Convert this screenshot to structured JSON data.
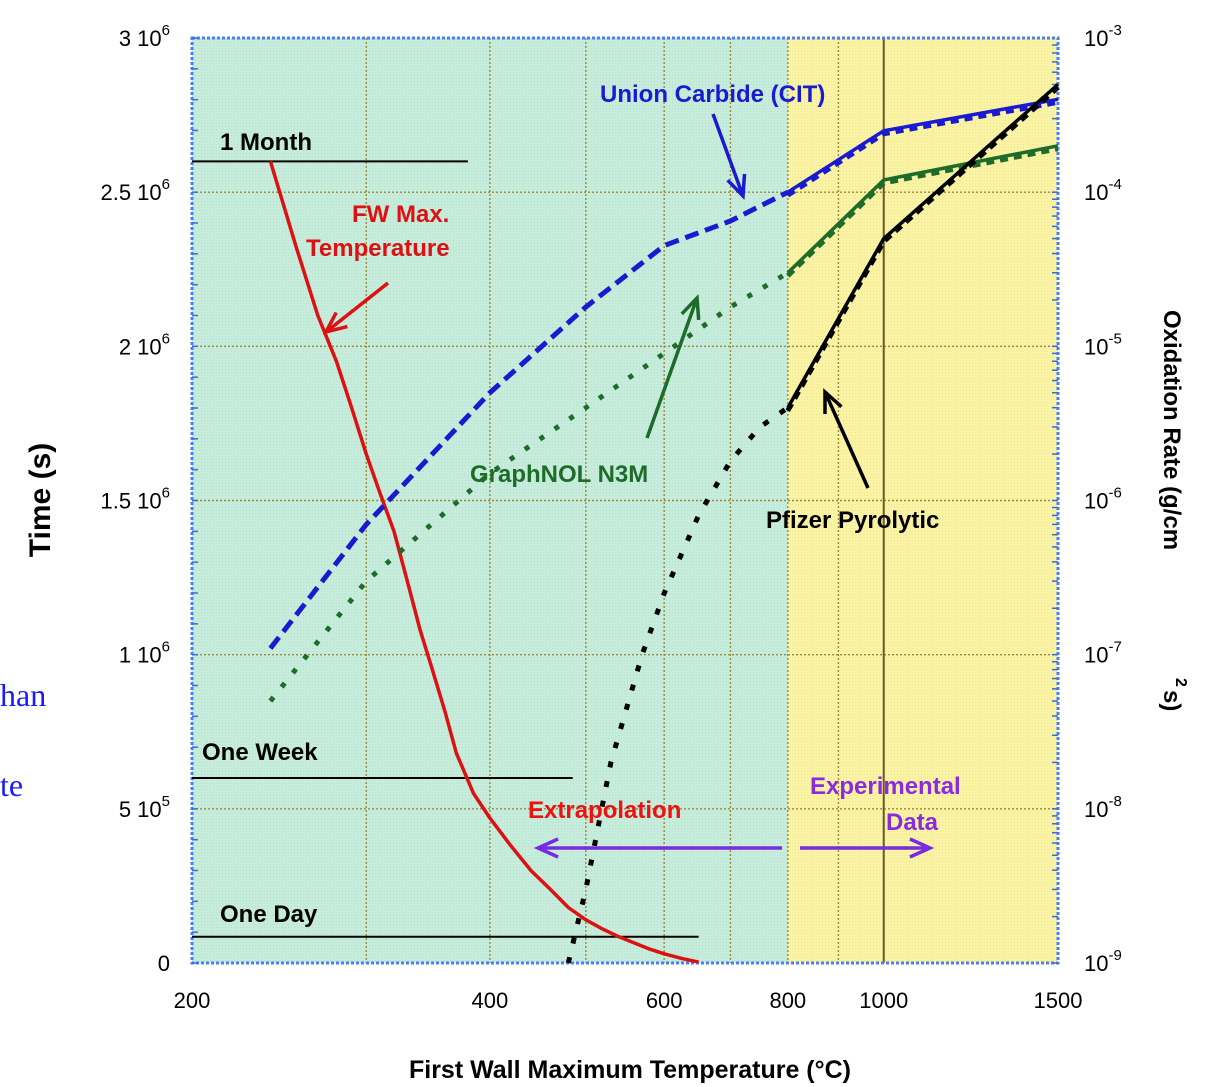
{
  "chart_data": {
    "type": "line",
    "xlabel": "First Wall Maximum Temperature (°C)",
    "ylabel_left": "Time (s)",
    "ylabel_right_main": "Oxidation Rate (g/cm",
    "ylabel_right_sup": "2",
    "ylabel_right_end": "s)",
    "x_scale": "log",
    "x_range": [
      200,
      1500
    ],
    "x_ticks": [
      {
        "value": 200,
        "label": "200"
      },
      {
        "value": 400,
        "label": "400"
      },
      {
        "value": 600,
        "label": "600"
      },
      {
        "value": 800,
        "label": "800"
      },
      {
        "value": 1000,
        "label": "1000"
      },
      {
        "value": 1500,
        "label": "1500"
      }
    ],
    "x_gridlines": [
      300,
      400,
      500,
      600,
      700,
      800,
      900,
      1000,
      1500
    ],
    "y_left_range": [
      0,
      3000000
    ],
    "y_left_ticks": [
      {
        "value": 0,
        "base": "0",
        "exp": ""
      },
      {
        "value": 500000,
        "base": "5 10",
        "exp": "5"
      },
      {
        "value": 1000000,
        "base": "1 10",
        "exp": "6"
      },
      {
        "value": 1500000,
        "base": "1.5 10",
        "exp": "6"
      },
      {
        "value": 2000000,
        "base": "2 10",
        "exp": "6"
      },
      {
        "value": 2500000,
        "base": "2.5 10",
        "exp": "6"
      },
      {
        "value": 3000000,
        "base": "3 10",
        "exp": "6"
      }
    ],
    "y_right_scale": "log",
    "y_right_range": [
      1e-09,
      0.001
    ],
    "y_right_ticks": [
      {
        "value": 1e-09,
        "base": "10",
        "exp": "-9"
      },
      {
        "value": 1e-08,
        "base": "10",
        "exp": "-8"
      },
      {
        "value": 1e-07,
        "base": "10",
        "exp": "-7"
      },
      {
        "value": 1e-06,
        "base": "10",
        "exp": "-6"
      },
      {
        "value": 1e-05,
        "base": "10",
        "exp": "-5"
      },
      {
        "value": 0.0001,
        "base": "10",
        "exp": "-4"
      },
      {
        "value": 0.001,
        "base": "10",
        "exp": "-3"
      }
    ],
    "grid": true,
    "regions": [
      {
        "name": "Extrapolation",
        "from": 200,
        "to": 800,
        "color": "#c6ecdc"
      },
      {
        "name": "Experimental Data",
        "from": 800,
        "to": 1500,
        "color": "#fbf3a4"
      }
    ],
    "reference_lines": [
      {
        "label": "1 Month",
        "y": 2600000,
        "x_from": 200,
        "x_to": 380
      },
      {
        "label": "One Week",
        "y": 600000,
        "x_from": 200,
        "x_to": 485
      },
      {
        "label": "One Day",
        "y": 85000,
        "x_from": 200,
        "x_to": 650
      }
    ],
    "series": [
      {
        "name": "FW Max. Temperature",
        "axis": "left",
        "color": "#dd1111",
        "x": [
          240,
          255,
          268,
          280,
          290,
          300,
          310,
          320,
          330,
          340,
          350,
          360,
          370,
          385,
          400,
          420,
          440,
          460,
          480,
          500,
          520,
          540,
          560,
          580,
          600,
          625,
          650
        ],
        "y": [
          2600000,
          2320000,
          2100000,
          1950000,
          1800000,
          1650000,
          1520000,
          1400000,
          1240000,
          1080000,
          950000,
          820000,
          680000,
          550000,
          470000,
          380000,
          300000,
          240000,
          180000,
          140000,
          110000,
          85000,
          65000,
          45000,
          30000,
          15000,
          3000
        ]
      },
      {
        "name": "Union Carbide (CIT)",
        "axis": "right",
        "color": "#1a1ad0",
        "x": [
          240,
          300,
          400,
          500,
          600,
          700,
          800,
          1000,
          1500
        ],
        "y": [
          1.1e-07,
          7e-07,
          5e-06,
          1.8e-05,
          4.5e-05,
          6.5e-05,
          0.0001,
          0.00025,
          0.0004
        ]
      },
      {
        "name": "GraphNOL N3M",
        "axis": "right",
        "color": "#1e6b2a",
        "x": [
          240,
          300,
          400,
          500,
          600,
          700,
          800,
          1000,
          1500
        ],
        "y": [
          5e-08,
          3e-07,
          1.5e-06,
          4e-06,
          9e-06,
          1.8e-05,
          3e-05,
          0.00012,
          0.0002
        ]
      },
      {
        "name": "Pfizer Pyrolytic",
        "axis": "right",
        "color": "#000000",
        "x": [
          480,
          500,
          530,
          570,
          600,
          650,
          700,
          750,
          800,
          1000,
          1500
        ],
        "y": [
          1e-09,
          3e-09,
          2e-08,
          1e-07,
          2.5e-07,
          8e-07,
          1.8e-06,
          3e-06,
          4e-06,
          5e-05,
          0.0005
        ]
      }
    ],
    "annotations": [
      {
        "text": "Union Carbide (CIT)",
        "color": "#1a1ad0"
      },
      {
        "text": "FW Max.",
        "color": "#dd1111"
      },
      {
        "text": "Temperature",
        "color": "#dd1111"
      },
      {
        "text": "GraphNOL N3M",
        "color": "#1e6b2a"
      },
      {
        "text": "Pfizer Pyrolytic",
        "color": "#000000"
      },
      {
        "text": "Extrapolation",
        "color": "#ee1111"
      },
      {
        "text": "Experimental",
        "color": "#8a2be2"
      },
      {
        "text": "Data",
        "color": "#8a2be2"
      },
      {
        "text": "1 Month",
        "color": "#000000"
      },
      {
        "text": "One Week",
        "color": "#000000"
      },
      {
        "text": "One Day",
        "color": "#000000"
      }
    ],
    "cropped_side_text": [
      "han",
      "te"
    ]
  }
}
